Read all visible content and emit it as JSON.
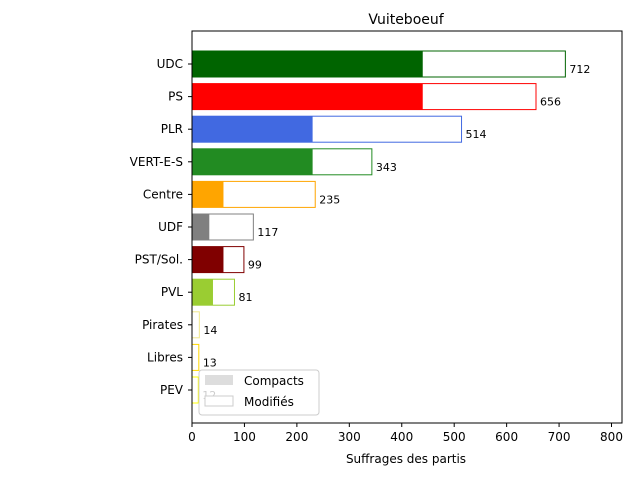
{
  "chart_data": {
    "type": "bar",
    "orientation": "horizontal",
    "stacked_overlay": true,
    "title": "Vuiteboeuf",
    "xlabel": "Suffrages des partis",
    "ylabel": "",
    "xlim": [
      0,
      820
    ],
    "xticks": [
      0,
      100,
      200,
      300,
      400,
      500,
      600,
      700,
      800
    ],
    "grid": false,
    "categories": [
      "UDC",
      "PS",
      "PLR",
      "VERT-E-S",
      "Centre",
      "UDF",
      "PST/Sol.",
      "PVL",
      "Pirates",
      "Libres",
      "PEV"
    ],
    "colors": [
      "#006400",
      "#ff0000",
      "#4169e1",
      "#228b22",
      "#ffa500",
      "#808080",
      "#800000",
      "#9acd32",
      "#f0e68c",
      "#ffd700",
      "#ffff00"
    ],
    "series": [
      {
        "name": "Compacts",
        "values": [
          440,
          440,
          230,
          230,
          60,
          33,
          60,
          40,
          0,
          0,
          0
        ]
      },
      {
        "name": "Modifiés",
        "values": [
          712,
          656,
          514,
          343,
          235,
          117,
          99,
          81,
          14,
          13,
          12
        ]
      }
    ],
    "data_labels": [
      "712",
      "656",
      "514",
      "343",
      "235",
      "117",
      "99",
      "81",
      "14",
      "13",
      "12"
    ],
    "legend": {
      "position": "lower-left",
      "entries": [
        {
          "label": "Compacts",
          "swatch_color": "#dddddd"
        },
        {
          "label": "Modifiés",
          "swatch_color": "#ffffff"
        }
      ]
    }
  }
}
